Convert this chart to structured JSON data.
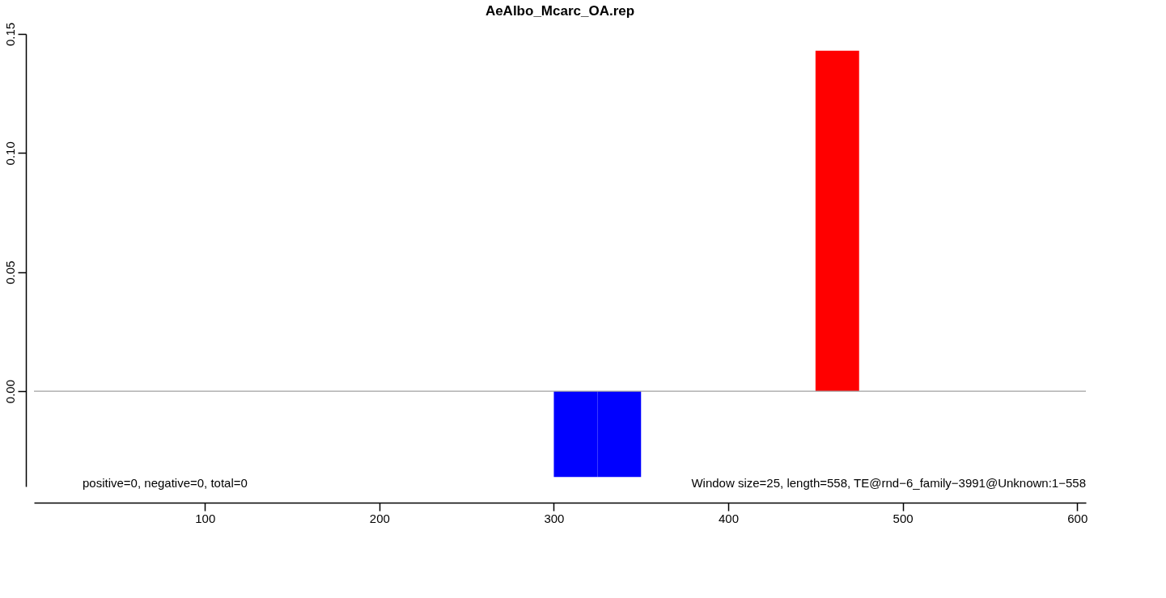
{
  "chart_data": {
    "type": "bar",
    "title": "AeAlbo_Mcarc_OA.rep",
    "x": [
      312.5,
      337.5,
      462.5
    ],
    "values": [
      -0.036,
      -0.036,
      0.143
    ],
    "colors": [
      "#0000ff",
      "#0000ff",
      "#ff0000"
    ],
    "xlim": [
      2,
      605
    ],
    "xticks": [
      100,
      200,
      300,
      400,
      500,
      600
    ],
    "ylim": [
      -0.04,
      0.15
    ],
    "yticks": [
      {
        "value": 0,
        "label": "0.00"
      },
      0.05,
      {
        "value": 0.1,
        "label": "0.10"
      },
      0.15
    ],
    "ref_lines": [
      {
        "axis": "y",
        "value": 0,
        "color": "#a0a0a0"
      }
    ],
    "annotations": [
      "positive=0, negative=0, total=0",
      "Window size=25, length=558, TE@rnd−6_family−3991@Unknown:1−558"
    ],
    "grid": false
  }
}
